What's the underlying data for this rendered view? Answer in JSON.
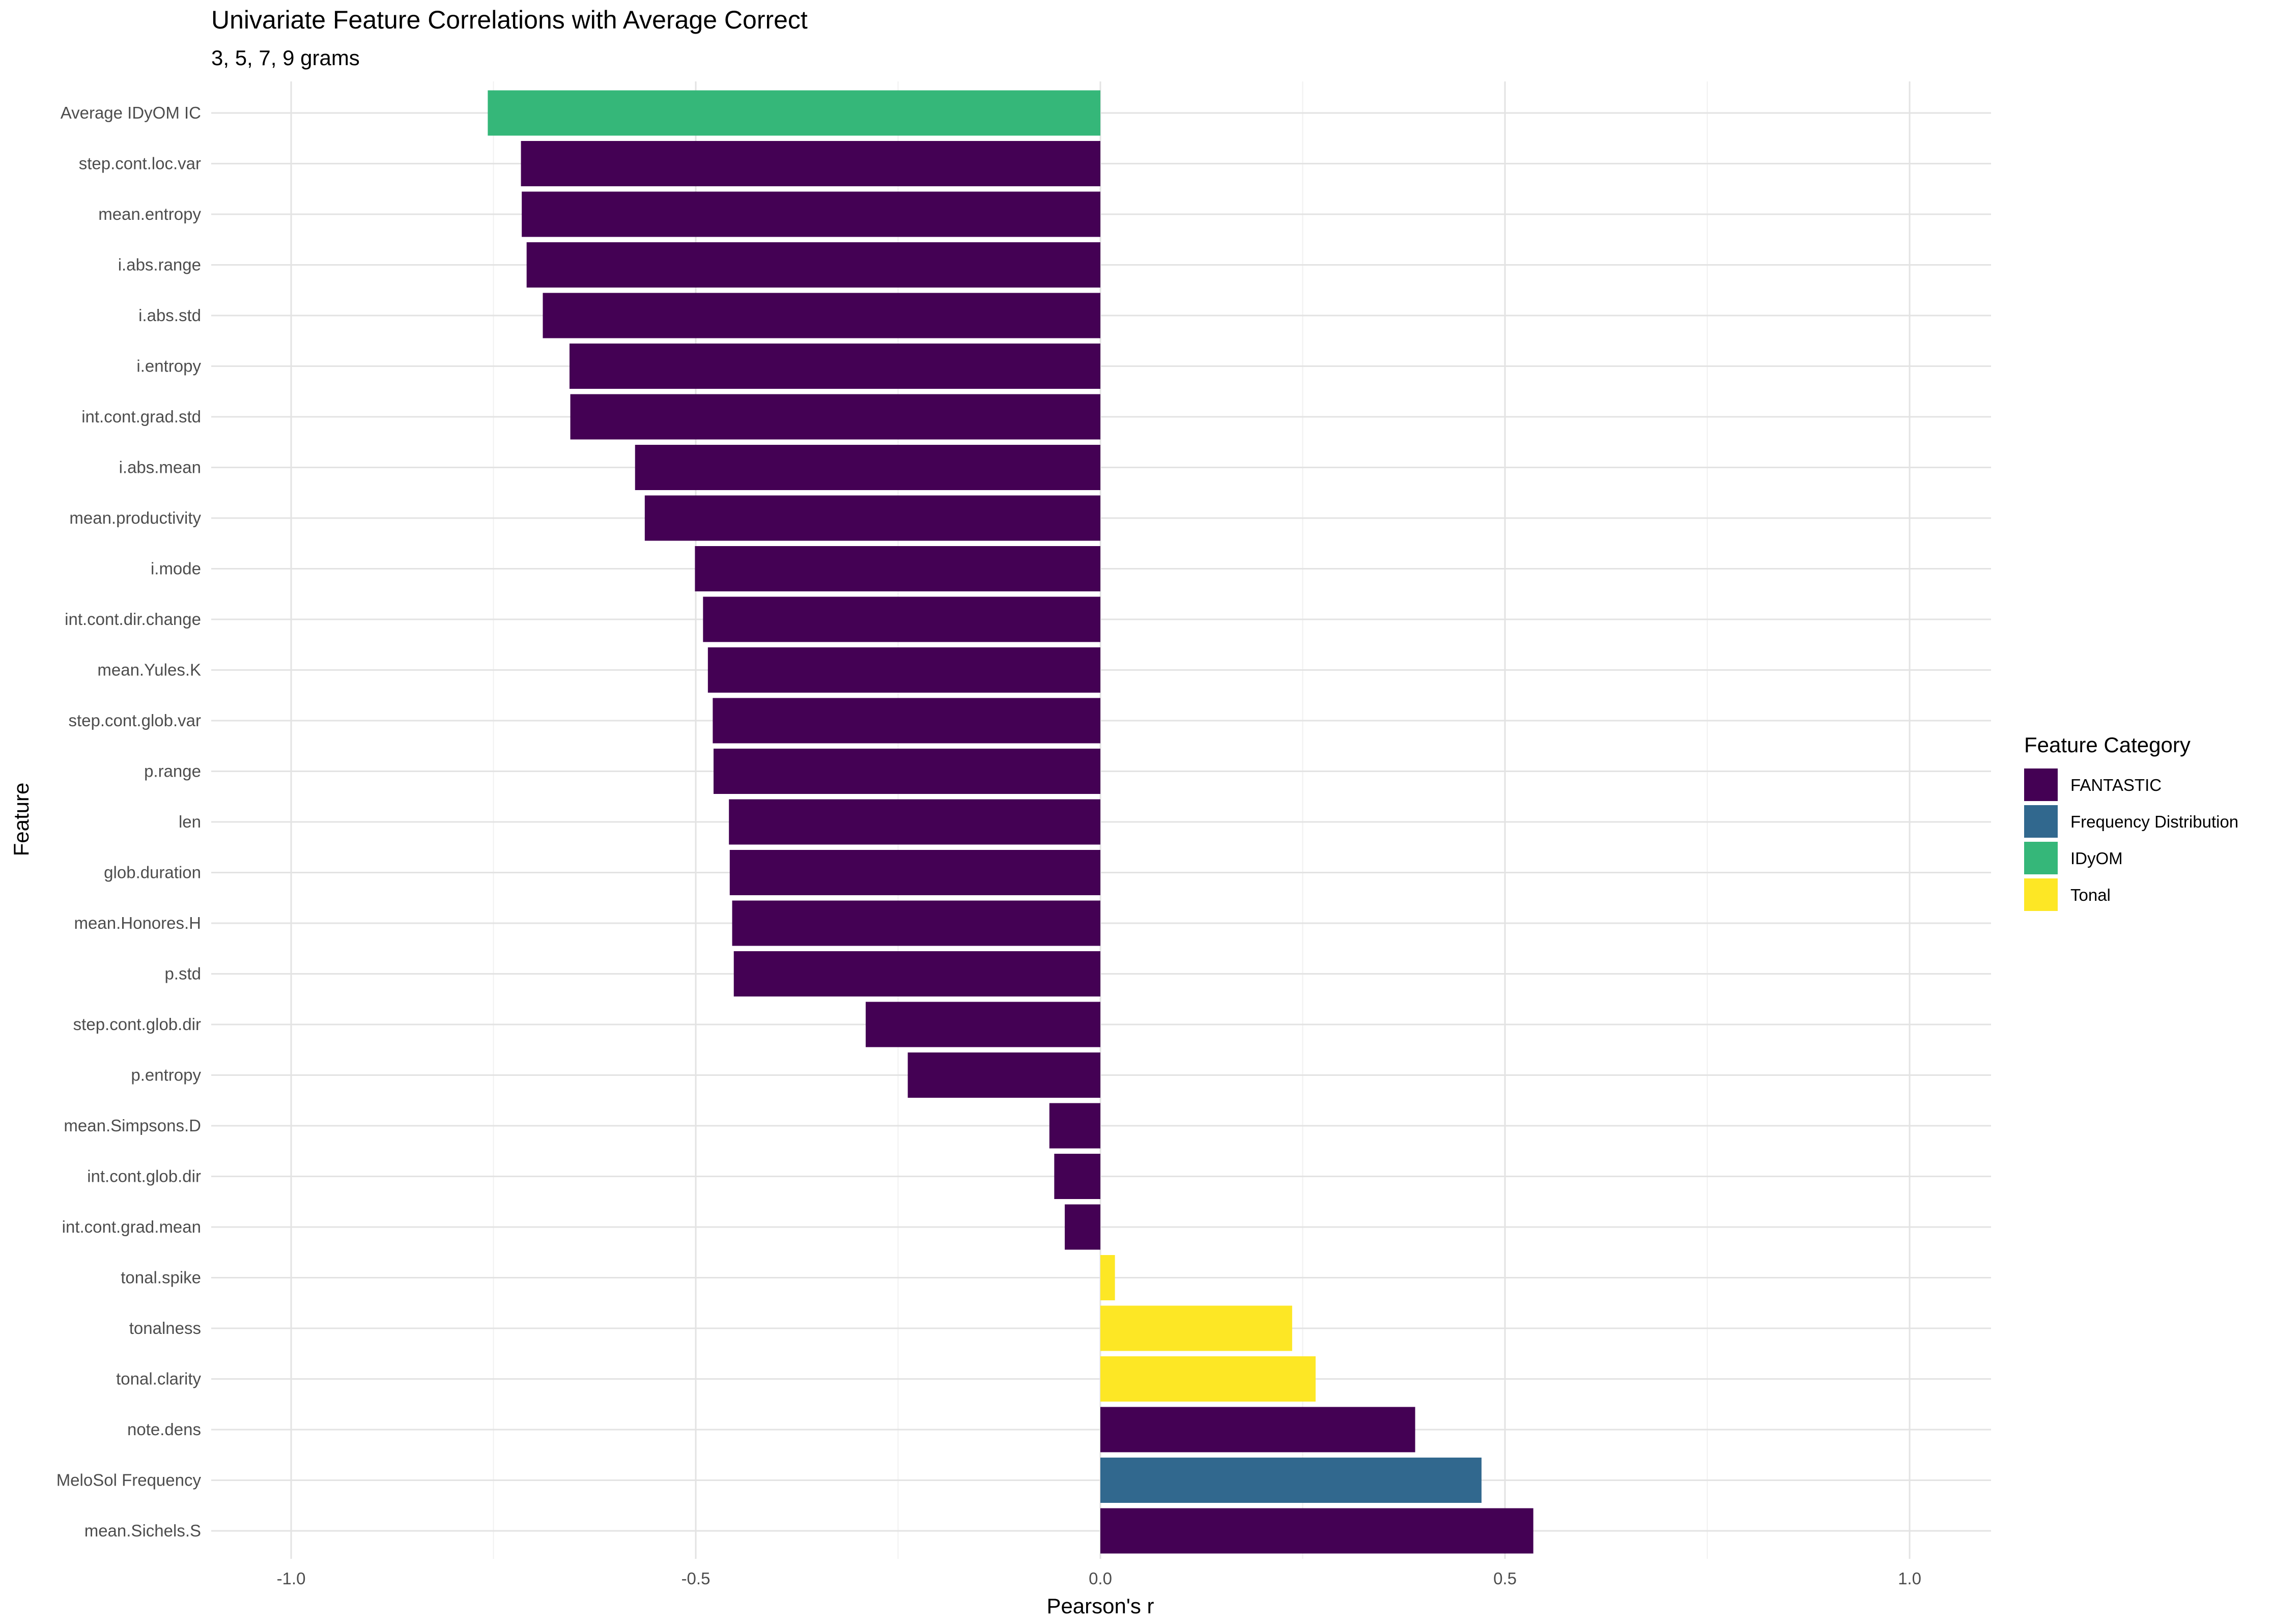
{
  "chart_data": {
    "type": "bar",
    "orientation": "horizontal",
    "title": "Univariate Feature Correlations with Average Correct",
    "subtitle": "3, 5, 7, 9 grams",
    "xlabel": "Pearson's r",
    "ylabel": "Feature",
    "xlim": [
      -1.0,
      1.0
    ],
    "xticks": [
      -1.0,
      -0.5,
      0.0,
      0.5,
      1.0
    ],
    "xtick_labels": [
      "-1.0",
      "-0.5",
      "0.0",
      "0.5",
      "1.0"
    ],
    "grid": true,
    "legend": {
      "title": "Feature Category",
      "position": "right",
      "entries": [
        {
          "name": "FANTASTIC",
          "color": "#440154"
        },
        {
          "name": "Frequency Distribution",
          "color": "#31688E"
        },
        {
          "name": "IDyOM",
          "color": "#35B779"
        },
        {
          "name": "Tonal",
          "color": "#FDE725"
        }
      ]
    },
    "bars": [
      {
        "feature": "Average IDyOM IC",
        "value": -0.757,
        "category": "IDyOM"
      },
      {
        "feature": "step.cont.loc.var",
        "value": -0.716,
        "category": "FANTASTIC"
      },
      {
        "feature": "mean.entropy",
        "value": -0.715,
        "category": "FANTASTIC"
      },
      {
        "feature": "i.abs.range",
        "value": -0.709,
        "category": "FANTASTIC"
      },
      {
        "feature": "i.abs.std",
        "value": -0.689,
        "category": "FANTASTIC"
      },
      {
        "feature": "i.entropy",
        "value": -0.656,
        "category": "FANTASTIC"
      },
      {
        "feature": "int.cont.grad.std",
        "value": -0.655,
        "category": "FANTASTIC"
      },
      {
        "feature": "i.abs.mean",
        "value": -0.575,
        "category": "FANTASTIC"
      },
      {
        "feature": "mean.productivity",
        "value": -0.563,
        "category": "FANTASTIC"
      },
      {
        "feature": "i.mode",
        "value": -0.501,
        "category": "FANTASTIC"
      },
      {
        "feature": "int.cont.dir.change",
        "value": -0.491,
        "category": "FANTASTIC"
      },
      {
        "feature": "mean.Yules.K",
        "value": -0.485,
        "category": "FANTASTIC"
      },
      {
        "feature": "step.cont.glob.var",
        "value": -0.479,
        "category": "FANTASTIC"
      },
      {
        "feature": "p.range",
        "value": -0.478,
        "category": "FANTASTIC"
      },
      {
        "feature": "len",
        "value": -0.459,
        "category": "FANTASTIC"
      },
      {
        "feature": "glob.duration",
        "value": -0.458,
        "category": "FANTASTIC"
      },
      {
        "feature": "mean.Honores.H",
        "value": -0.455,
        "category": "FANTASTIC"
      },
      {
        "feature": "p.std",
        "value": -0.453,
        "category": "FANTASTIC"
      },
      {
        "feature": "step.cont.glob.dir",
        "value": -0.29,
        "category": "FANTASTIC"
      },
      {
        "feature": "p.entropy",
        "value": -0.238,
        "category": "FANTASTIC"
      },
      {
        "feature": "mean.Simpsons.D",
        "value": -0.063,
        "category": "FANTASTIC"
      },
      {
        "feature": "int.cont.glob.dir",
        "value": -0.057,
        "category": "FANTASTIC"
      },
      {
        "feature": "int.cont.grad.mean",
        "value": -0.044,
        "category": "FANTASTIC"
      },
      {
        "feature": "tonal.spike",
        "value": 0.018,
        "category": "Tonal"
      },
      {
        "feature": "tonalness",
        "value": 0.237,
        "category": "Tonal"
      },
      {
        "feature": "tonal.clarity",
        "value": 0.266,
        "category": "Tonal"
      },
      {
        "feature": "note.dens",
        "value": 0.389,
        "category": "FANTASTIC"
      },
      {
        "feature": "MeloSol Frequency",
        "value": 0.471,
        "category": "Frequency Distribution"
      },
      {
        "feature": "mean.Sichels.S",
        "value": 0.535,
        "category": "FANTASTIC"
      }
    ]
  }
}
